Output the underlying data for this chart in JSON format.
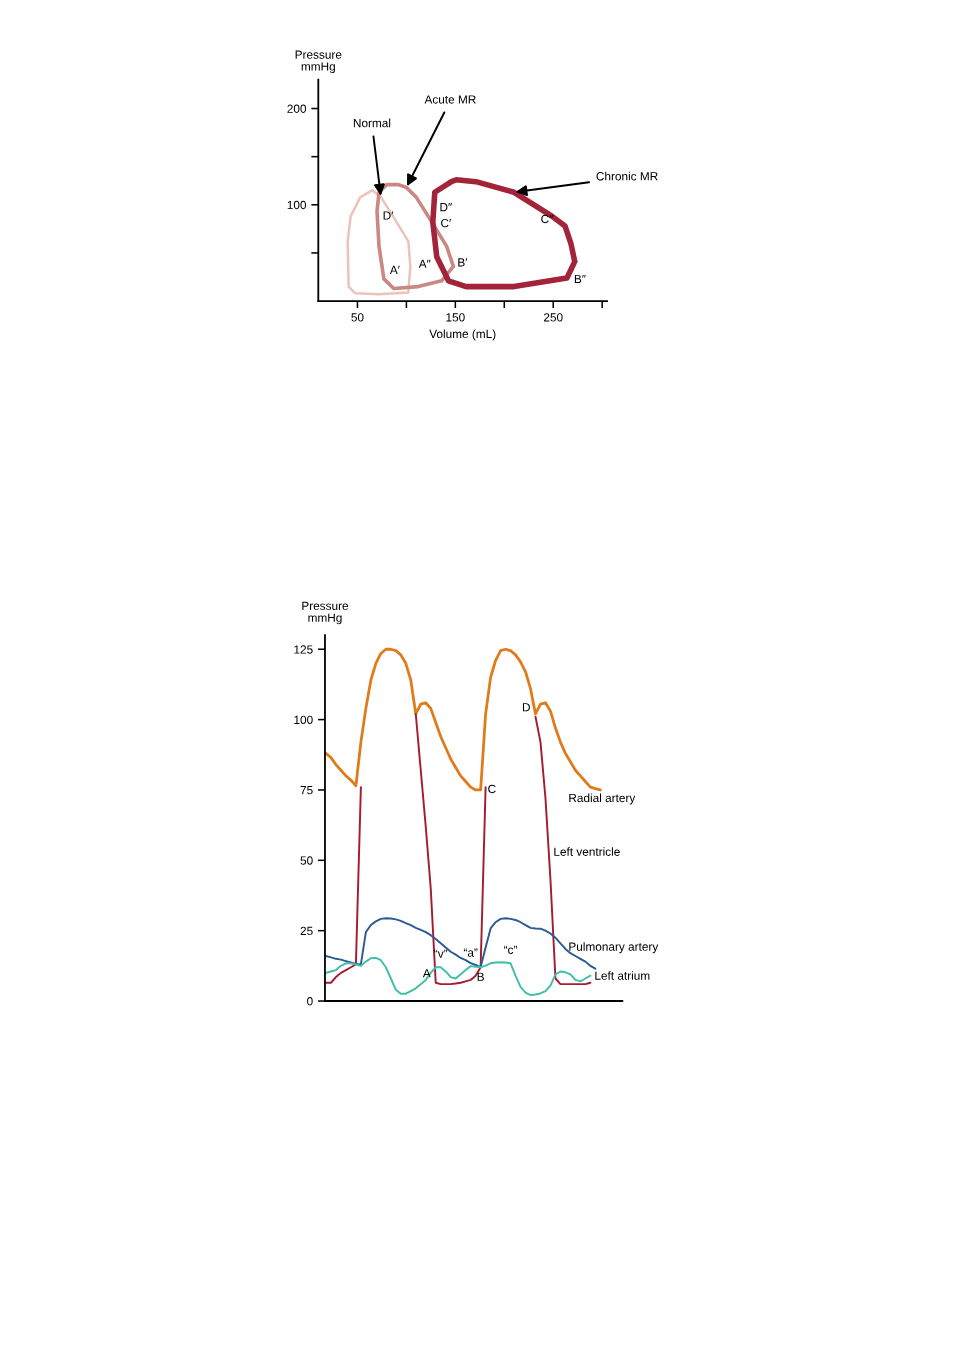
{
  "chart_data": [
    {
      "type": "line",
      "xlabel": "Volume (mL)",
      "ylabel": "Pressure\nmmHg",
      "xlim": [
        10,
        305
      ],
      "ylim": [
        0,
        230
      ],
      "xticks": [
        50,
        {
          "value": 100,
          "label": null
        },
        150,
        {
          "value": 200,
          "label": null
        },
        250,
        {
          "value": 300,
          "label": null
        }
      ],
      "yticks": [
        {
          "value": 50,
          "label": null
        },
        100,
        {
          "value": 150,
          "label": null
        },
        200
      ],
      "marker": "none",
      "line_style": "solid",
      "series": [
        {
          "name": "Normal",
          "color": "#ecc3bb",
          "x": [
            40,
            43,
            53,
            65,
            74,
            90,
            102,
            104,
            null,
            104,
            102,
            72,
            48,
            41,
            40
          ],
          "values": [
            62,
            88,
            108,
            115,
            108,
            82,
            62,
            36,
            null,
            36,
            9,
            7,
            8,
            15,
            62
          ]
        },
        {
          "name": "Acute MR",
          "color": "#c98883",
          "x": [
            70,
            72,
            80,
            92,
            100,
            110,
            126,
            141,
            148,
            null,
            148,
            136,
            112,
            87,
            77,
            72,
            70
          ],
          "values": [
            93,
            113,
            121,
            121,
            118,
            108,
            82,
            57,
            36,
            null,
            36,
            21,
            15,
            13,
            23,
            57,
            93
          ]
        },
        {
          "name": "Chronic MR",
          "color": "#a3243a",
          "x": [
            127,
            129,
            146,
            151,
            171,
            210,
            249,
            262,
            268,
            272,
            null,
            272,
            264,
            210,
            161,
            143,
            131,
            127
          ],
          "values": [
            82,
            113,
            124,
            126,
            124,
            113,
            88,
            78,
            60,
            41,
            null,
            41,
            24,
            15,
            15,
            21,
            46,
            82
          ]
        }
      ],
      "annotations": [
        {
          "text": "D′",
          "x": 70,
          "y": 93
        },
        {
          "text": "A′",
          "x": 77,
          "y": 23
        },
        {
          "text": "A″",
          "x": 131,
          "y": 46
        },
        {
          "text": "B′",
          "x": 148,
          "y": 36
        },
        {
          "text": "D″",
          "x": 127,
          "y": 82
        },
        {
          "text": "C′",
          "x": 126,
          "y": 82
        },
        {
          "text": "C″",
          "x": 262,
          "y": 78
        },
        {
          "text": "B″",
          "x": 264,
          "y": 24
        }
      ]
    },
    {
      "type": "line",
      "ylabel": "Pressure\nmmHg",
      "ylim": [
        0,
        130
      ],
      "yticks": [
        0,
        25,
        50,
        75,
        100,
        125
      ],
      "marker": "none",
      "line_style": "solid",
      "categories": [
        null,
        null,
        null,
        null,
        null,
        null,
        null,
        null,
        null,
        null,
        null,
        null,
        null,
        null,
        null,
        null,
        null,
        null,
        null,
        null,
        null,
        null,
        null,
        null,
        null,
        null,
        null,
        null,
        null,
        null,
        null,
        null,
        null,
        null,
        null,
        null,
        null,
        null,
        null,
        null,
        null,
        null,
        null,
        null,
        null,
        null,
        null,
        null,
        null,
        null,
        null,
        null,
        null,
        null,
        null,
        null
      ],
      "series": [
        {
          "name": "Radial artery",
          "color": "#e07b1c",
          "values": [
            88,
            86.5,
            84,
            82,
            80,
            78.5,
            76.5,
            92,
            104,
            114,
            120,
            123.5,
            125,
            125,
            124.5,
            123,
            120,
            114,
            102,
            105.5,
            106,
            104,
            99,
            94,
            90,
            86,
            83,
            80,
            78,
            76,
            75,
            75,
            102,
            115,
            121,
            124.5,
            125,
            124.5,
            123,
            120.5,
            117,
            111,
            102,
            105.5,
            106,
            103,
            97,
            92,
            88,
            85,
            82,
            80,
            78,
            76,
            75.5,
            75
          ],
          "value_labels": [
            null,
            null,
            null,
            null,
            null,
            null,
            null,
            null,
            null,
            null,
            null,
            null,
            null,
            null,
            null,
            null,
            null,
            null,
            null,
            null,
            null,
            null,
            null,
            null,
            null,
            null,
            null,
            null,
            null,
            null,
            null,
            "C",
            null,
            null,
            null,
            null,
            null,
            null,
            null,
            null,
            null,
            null,
            null,
            null,
            null,
            null,
            null,
            null,
            null,
            null,
            null,
            null,
            null,
            null,
            null,
            null
          ]
        },
        {
          "name": "Left ventricle",
          "color": "#a51c30",
          "values": [
            6.5,
            6.5,
            8.5,
            10,
            11,
            12,
            13,
            76,
            null,
            null,
            null,
            null,
            null,
            null,
            null,
            null,
            null,
            null,
            102,
            82,
            62,
            40,
            6.5,
            6,
            6,
            6,
            6.2,
            6.5,
            7,
            7.5,
            9,
            12,
            76,
            null,
            null,
            null,
            null,
            null,
            null,
            null,
            null,
            null,
            101,
            92,
            72,
            43,
            8,
            6,
            6,
            6,
            6,
            6,
            6,
            6.5,
            null,
            null
          ],
          "value_labels": [
            null,
            null,
            null,
            null,
            null,
            null,
            null,
            null,
            null,
            null,
            null,
            null,
            null,
            null,
            null,
            null,
            null,
            null,
            null,
            null,
            null,
            null,
            "A",
            null,
            null,
            null,
            null,
            null,
            null,
            null,
            null,
            null,
            null,
            null,
            null,
            null,
            null,
            null,
            null,
            null,
            null,
            null,
            "D",
            null,
            null,
            null,
            null,
            null,
            null,
            null,
            null,
            null,
            null,
            null,
            null,
            null
          ]
        },
        {
          "name": "Pulmonary artery",
          "color": "#2c5b94",
          "values": [
            16,
            15.5,
            15,
            14.7,
            14.2,
            13.7,
            13.2,
            13,
            24.5,
            27,
            28.3,
            29.2,
            29.4,
            29.3,
            29,
            28.5,
            27.7,
            27,
            26,
            25.3,
            24.5,
            23.4,
            22,
            20.5,
            19,
            17.5,
            16.5,
            15.3,
            14.5,
            13.5,
            12.8,
            12,
            19,
            25.8,
            28,
            29.2,
            29.4,
            29.2,
            28.8,
            28,
            27,
            26,
            25.8,
            25.7,
            25,
            24,
            22.5,
            20.5,
            18.5,
            17,
            16,
            15,
            14,
            12.5,
            11.5,
            null
          ],
          "value_labels": [
            null,
            null,
            null,
            null,
            null,
            null,
            null,
            null,
            null,
            null,
            null,
            null,
            null,
            null,
            null,
            null,
            null,
            null,
            null,
            null,
            null,
            null,
            null,
            null,
            null,
            null,
            null,
            null,
            null,
            null,
            null,
            "B",
            null,
            null,
            null,
            null,
            null,
            null,
            null,
            null,
            null,
            null,
            null,
            null,
            null,
            null,
            null,
            null,
            null,
            null,
            null,
            null,
            null,
            null,
            null,
            null
          ]
        },
        {
          "name": "Left atrium",
          "color": "#3fbfa8",
          "values": [
            10,
            10.5,
            11,
            12.5,
            13.4,
            13.4,
            13,
            12.5,
            14,
            15.2,
            15.3,
            14.5,
            12,
            8,
            4,
            2.6,
            2.6,
            3.5,
            4.5,
            6,
            7.5,
            10,
            12,
            12,
            10.5,
            8.5,
            8,
            9.5,
            11,
            12.4,
            12.2,
            12,
            12.6,
            13.4,
            13.7,
            13.8,
            13.7,
            13.4,
            9,
            5,
            3,
            2.1,
            2.3,
            2.7,
            3.5,
            5.5,
            9.5,
            10.5,
            10.2,
            9.5,
            7.5,
            7,
            8,
            9,
            null,
            null
          ],
          "value_labels": [
            null,
            null,
            null,
            null,
            null,
            null,
            null,
            null,
            null,
            null,
            null,
            null,
            null,
            null,
            null,
            null,
            null,
            null,
            null,
            null,
            null,
            null,
            null,
            "“v”",
            null,
            null,
            null,
            null,
            null,
            "“a”",
            null,
            null,
            null,
            null,
            null,
            null,
            null,
            "“c”",
            null,
            null,
            null,
            null,
            null,
            null,
            null,
            null,
            null,
            null,
            null,
            null,
            null,
            null,
            null,
            null,
            null,
            null
          ]
        }
      ]
    }
  ]
}
